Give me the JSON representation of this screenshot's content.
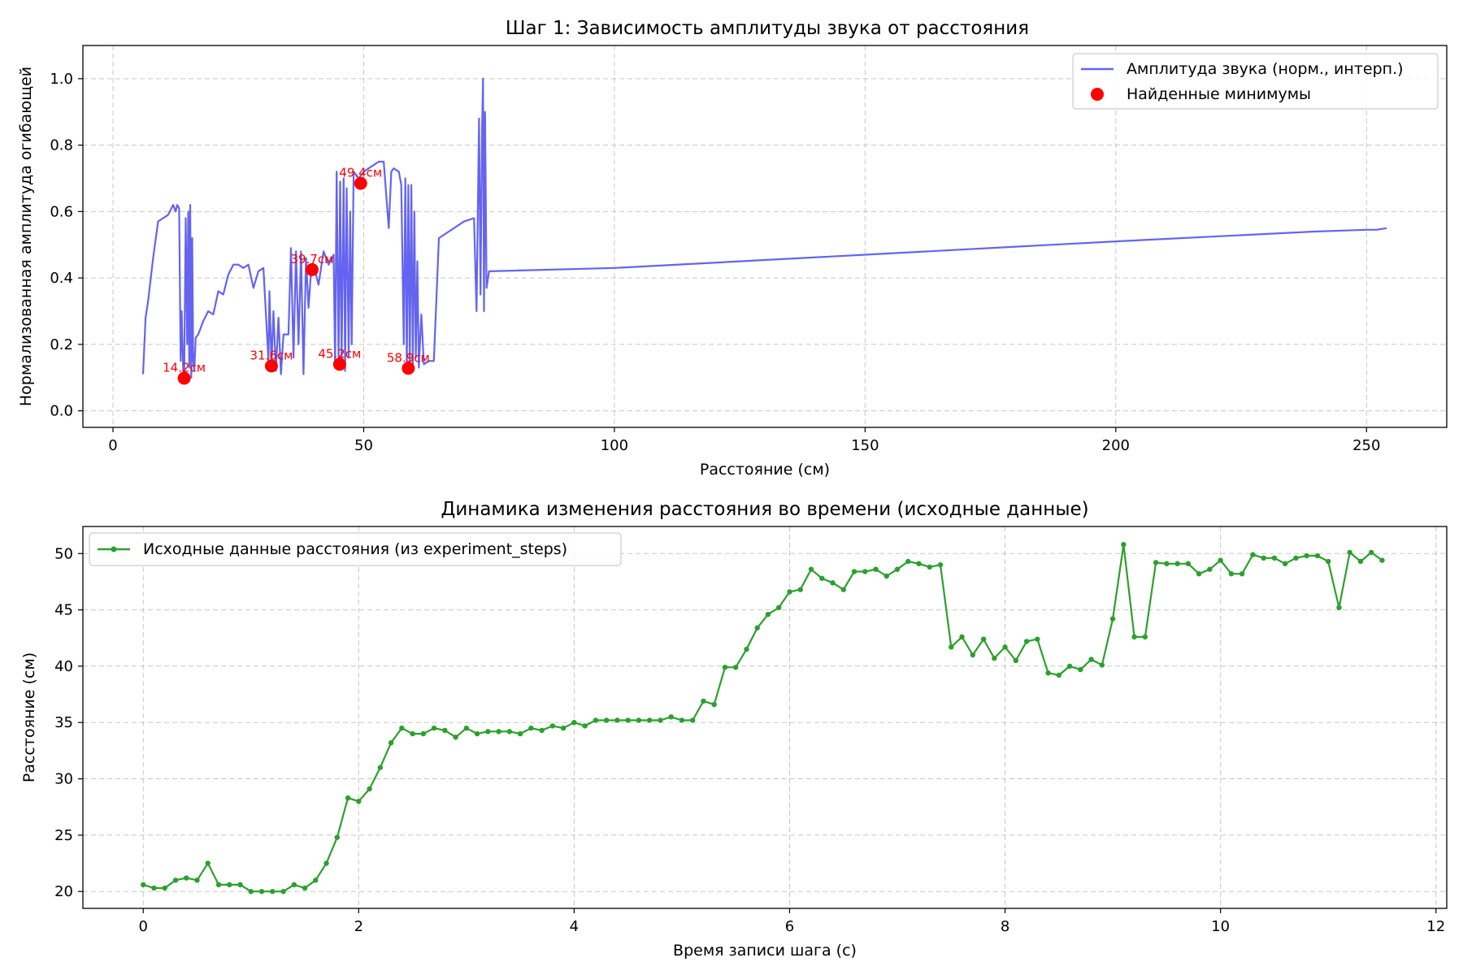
{
  "chart_data": [
    {
      "type": "line",
      "title": "Шаг 1: Зависимость амплитуды звука от расстояния",
      "xlabel": "Расстояние (см)",
      "ylabel": "Нормализованная амплитуда огибающей",
      "xlim": [
        -6,
        266
      ],
      "ylim": [
        -0.05,
        1.1
      ],
      "xticks": [
        0,
        50,
        100,
        150,
        200,
        250
      ],
      "yticks": [
        0.0,
        0.2,
        0.4,
        0.6,
        0.8,
        1.0
      ],
      "grid": true,
      "legend_position": "top-right",
      "series": [
        {
          "name": "Амплитуда звука (норм., интерп.)",
          "type": "line",
          "color": "#6464f0",
          "x": [
            6.0,
            6.5,
            7.0,
            8.0,
            9.0,
            10.0,
            11.0,
            12.0,
            12.5,
            12.8,
            13.2,
            13.5,
            13.7,
            14.0,
            14.2,
            14.5,
            14.8,
            15.0,
            15.2,
            15.4,
            15.6,
            15.8,
            16.0,
            16.2,
            16.5,
            17.0,
            18.0,
            19.0,
            20.0,
            21.0,
            22.0,
            23.0,
            24.0,
            25.0,
            26.0,
            27.0,
            28.0,
            29.0,
            30.0,
            31.0,
            31.2,
            31.6,
            32.0,
            32.5,
            33.0,
            33.5,
            34.0,
            35.0,
            35.5,
            36.0,
            36.5,
            37.0,
            37.5,
            38.0,
            38.5,
            39.0,
            39.5,
            40.0,
            41.0,
            42.0,
            43.0,
            44.0,
            44.3,
            44.6,
            45.0,
            45.3,
            45.6,
            46.0,
            46.3,
            46.6,
            47.0,
            47.3,
            47.6,
            48.0,
            49.0,
            50.0,
            51.0,
            52.0,
            53.0,
            54.0,
            55.0,
            55.5,
            56.0,
            57.0,
            57.5,
            58.0,
            58.3,
            58.6,
            58.9,
            59.2,
            59.5,
            59.8,
            60.1,
            60.4,
            60.7,
            61.0,
            61.5,
            62.0,
            63.0,
            64.0,
            65.0,
            66.0,
            68.0,
            70.0,
            72.0,
            72.5,
            73.0,
            73.3,
            73.6,
            73.8,
            74.0,
            74.2,
            74.5,
            75.0,
            100.0,
            150.0,
            200.0,
            240.0,
            250.0,
            252.0,
            254.0
          ],
          "y": [
            0.11,
            0.28,
            0.33,
            0.46,
            0.57,
            0.58,
            0.59,
            0.62,
            0.6,
            0.62,
            0.61,
            0.15,
            0.3,
            0.12,
            0.1,
            0.58,
            0.2,
            0.6,
            0.13,
            0.62,
            0.1,
            0.52,
            0.15,
            0.12,
            0.22,
            0.23,
            0.27,
            0.3,
            0.29,
            0.36,
            0.35,
            0.41,
            0.44,
            0.44,
            0.43,
            0.44,
            0.37,
            0.42,
            0.43,
            0.15,
            0.36,
            0.13,
            0.3,
            0.12,
            0.28,
            0.11,
            0.23,
            0.23,
            0.49,
            0.16,
            0.48,
            0.2,
            0.48,
            0.11,
            0.46,
            0.31,
            0.42,
            0.44,
            0.38,
            0.48,
            0.44,
            0.47,
            0.13,
            0.72,
            0.14,
            0.69,
            0.15,
            0.7,
            0.12,
            0.67,
            0.16,
            0.6,
            0.2,
            0.72,
            0.7,
            0.72,
            0.73,
            0.74,
            0.75,
            0.75,
            0.55,
            0.72,
            0.73,
            0.72,
            0.68,
            0.2,
            0.7,
            0.13,
            0.68,
            0.15,
            0.68,
            0.14,
            0.6,
            0.16,
            0.45,
            0.13,
            0.29,
            0.14,
            0.15,
            0.15,
            0.52,
            0.53,
            0.55,
            0.57,
            0.58,
            0.3,
            0.88,
            0.35,
            0.85,
            1.0,
            0.3,
            0.9,
            0.37,
            0.42,
            0.43,
            0.47,
            0.51,
            0.54,
            0.545,
            0.545,
            0.55
          ]
        },
        {
          "name": "Найденные минимумы",
          "type": "scatter",
          "color": "#ff0000",
          "x": [
            14.2,
            31.6,
            39.7,
            45.2,
            49.4,
            58.9
          ],
          "y": [
            0.098,
            0.135,
            0.425,
            0.14,
            0.685,
            0.128
          ],
          "labels": [
            "14.2см",
            "31.6см",
            "39.7см",
            "45.2см",
            "49.4см",
            "58.9см"
          ]
        }
      ]
    },
    {
      "type": "line",
      "title": "Динамика изменения расстояния во времени (исходные данные)",
      "xlabel": "Время записи шага (с)",
      "ylabel": "Расстояние (см)",
      "xlim": [
        -0.56,
        12.1
      ],
      "ylim": [
        18.5,
        52.4
      ],
      "xticks": [
        0,
        2,
        4,
        6,
        8,
        10,
        12
      ],
      "yticks": [
        20,
        25,
        30,
        35,
        40,
        45,
        50
      ],
      "grid": true,
      "legend_position": "top-left",
      "series": [
        {
          "name": "Исходные данные расстояния (из experiment_steps)",
          "type": "line-markers",
          "color": "#2ca02c",
          "x": [
            0.0,
            0.1,
            0.2,
            0.3,
            0.4,
            0.5,
            0.6,
            0.7,
            0.8,
            0.9,
            1.0,
            1.1,
            1.2,
            1.3,
            1.4,
            1.5,
            1.6,
            1.7,
            1.8,
            1.9,
            2.0,
            2.1,
            2.2,
            2.3,
            2.4,
            2.5,
            2.6,
            2.7,
            2.8,
            2.9,
            3.0,
            3.1,
            3.2,
            3.3,
            3.4,
            3.5,
            3.6,
            3.7,
            3.8,
            3.9,
            4.0,
            4.1,
            4.2,
            4.3,
            4.4,
            4.5,
            4.6,
            4.7,
            4.8,
            4.9,
            5.0,
            5.1,
            5.2,
            5.3,
            5.4,
            5.5,
            5.6,
            5.7,
            5.8,
            5.9,
            6.0,
            6.1,
            6.2,
            6.3,
            6.4,
            6.5,
            6.6,
            6.7,
            6.8,
            6.9,
            7.0,
            7.1,
            7.2,
            7.3,
            7.4,
            7.5,
            7.6,
            7.7,
            7.8,
            7.9,
            8.0,
            8.1,
            8.2,
            8.3,
            8.4,
            8.5,
            8.6,
            8.7,
            8.8,
            8.9,
            9.0,
            9.1,
            9.2,
            9.3,
            9.4,
            9.5,
            9.6,
            9.7,
            9.8,
            9.9,
            10.0,
            10.1,
            10.2,
            10.3,
            10.4,
            10.5,
            10.6,
            10.7,
            10.8,
            10.9,
            11.0,
            11.1,
            11.2,
            11.3,
            11.4,
            11.5
          ],
          "y": [
            20.6,
            20.3,
            20.3,
            21.0,
            21.2,
            21.0,
            22.5,
            20.6,
            20.6,
            20.6,
            20.0,
            20.0,
            20.0,
            20.0,
            20.6,
            20.3,
            21.0,
            22.5,
            24.8,
            28.3,
            28.0,
            29.1,
            31.0,
            33.2,
            34.5,
            34.0,
            34.0,
            34.5,
            34.3,
            33.7,
            34.5,
            34.0,
            34.2,
            34.2,
            34.2,
            34.0,
            34.5,
            34.3,
            34.7,
            34.5,
            35.0,
            34.7,
            35.2,
            35.2,
            35.2,
            35.2,
            35.2,
            35.2,
            35.2,
            35.5,
            35.2,
            35.2,
            36.9,
            36.6,
            39.9,
            39.9,
            41.5,
            43.4,
            44.6,
            45.2,
            46.6,
            46.8,
            48.6,
            47.8,
            47.4,
            46.8,
            48.4,
            48.4,
            48.6,
            48.0,
            48.6,
            49.3,
            49.1,
            48.8,
            49.0,
            41.7,
            42.6,
            41.0,
            42.4,
            40.7,
            41.7,
            40.5,
            42.2,
            42.4,
            39.4,
            39.2,
            40.0,
            39.7,
            40.6,
            40.1,
            44.2,
            50.8,
            42.6,
            42.6,
            49.2,
            49.1,
            49.1,
            49.1,
            48.2,
            48.6,
            49.4,
            48.2,
            48.2,
            49.9,
            49.6,
            49.6,
            49.1,
            49.6,
            49.8,
            49.8,
            49.3,
            45.2,
            50.1,
            49.3,
            50.1,
            49.4
          ]
        }
      ]
    }
  ]
}
